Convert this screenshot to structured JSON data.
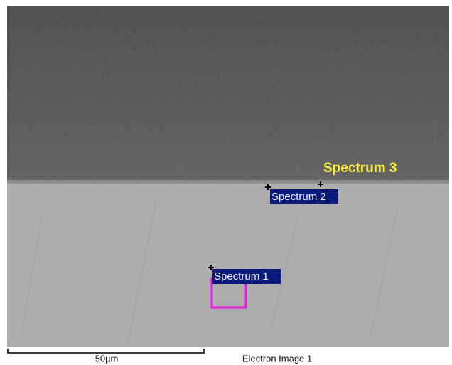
{
  "annotations": {
    "spectrum_3": "Spectrum 3",
    "spectrum_2": "Spectrum 2",
    "spectrum_1": "Spectrum 1"
  },
  "scale_bar": {
    "label": "50µm"
  },
  "caption": "Electron Image 1"
}
